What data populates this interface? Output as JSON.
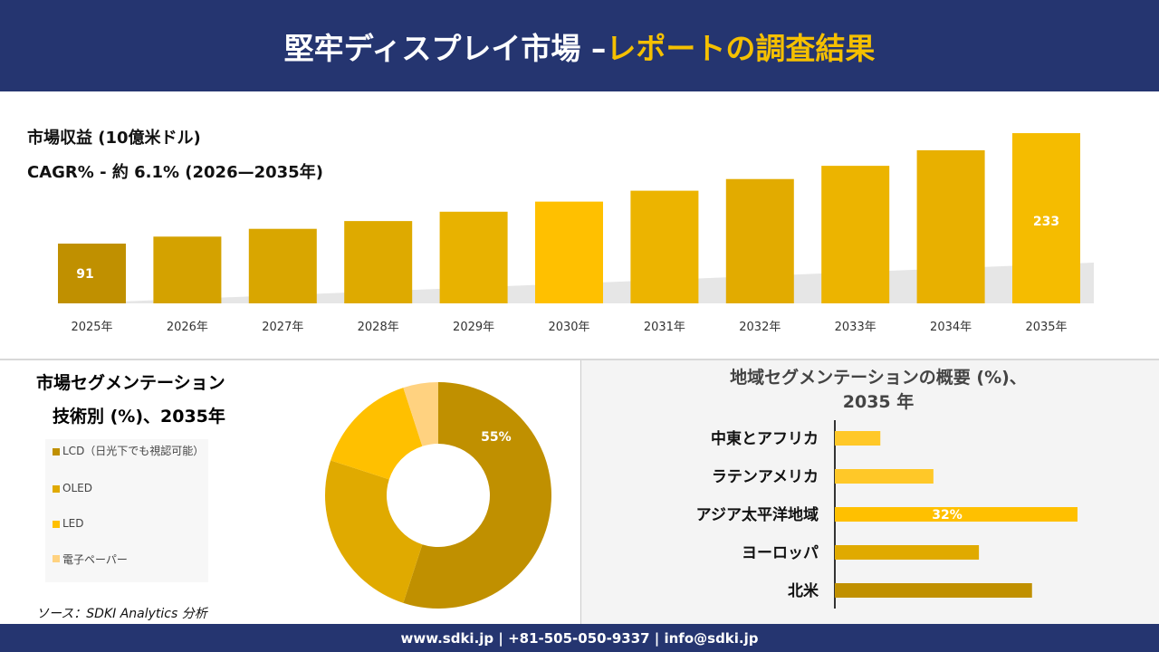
{
  "header": {
    "title_main": "堅牢ディスプレイ市場 –",
    "title_accent": "レポートの調査結果"
  },
  "footer": {
    "contact": "www.sdki.jp | +81-505-050-9337 | info@sdki.jp"
  },
  "colors": {
    "navy": "#253570",
    "accent": "#f5c000"
  },
  "chart_data": [
    {
      "type": "bar",
      "title": "市場収益 (10億米ドル)",
      "subtitle": "CAGR% - 約 6.1% (2026—2035年)",
      "categories": [
        "2025年",
        "2026年",
        "2027年",
        "2028年",
        "2029年",
        "2030年",
        "2031年",
        "2032年",
        "2033年",
        "2034年",
        "2035年"
      ],
      "values": [
        91,
        100,
        110,
        120,
        132,
        145,
        159,
        174,
        191,
        211,
        233
      ],
      "data_labels": {
        "0": "91",
        "10": "233"
      },
      "colors": [
        "#c09000",
        "#d4a200",
        "#d9a600",
        "#deaa00",
        "#e8b200",
        "#ffc000",
        "#ecb400",
        "#e2ab00",
        "#ecb400",
        "#e8b000",
        "#f5bc00"
      ]
    },
    {
      "type": "pie",
      "title": "市場セグメンテーション",
      "subtitle": "技術別 (%)、2035年",
      "labels": [
        "LCD（日光下でも視認可能）",
        "OLED",
        "LED",
        "電子ペーパー"
      ],
      "values": [
        55,
        25,
        15,
        5
      ],
      "data_labels": {
        "0": "55%"
      },
      "colors": [
        "#c09000",
        "#e0aa00",
        "#ffc000",
        "#ffd280"
      ]
    },
    {
      "type": "bar",
      "orientation": "horizontal",
      "title": "地域セグメンテーションの概要 (%)、2035 年",
      "categories": [
        "中東とアフリカ",
        "ラテンアメリカ",
        "アジア太平洋地域",
        "ヨーロッパ",
        "北米"
      ],
      "values": [
        6,
        13,
        32,
        19,
        26
      ],
      "data_labels": {
        "2": "32%"
      },
      "colors": [
        "#ffc828",
        "#ffc828",
        "#ffc000",
        "#e0aa00",
        "#c09000"
      ]
    }
  ],
  "source": "ソース：SDKI Analytics 分析"
}
